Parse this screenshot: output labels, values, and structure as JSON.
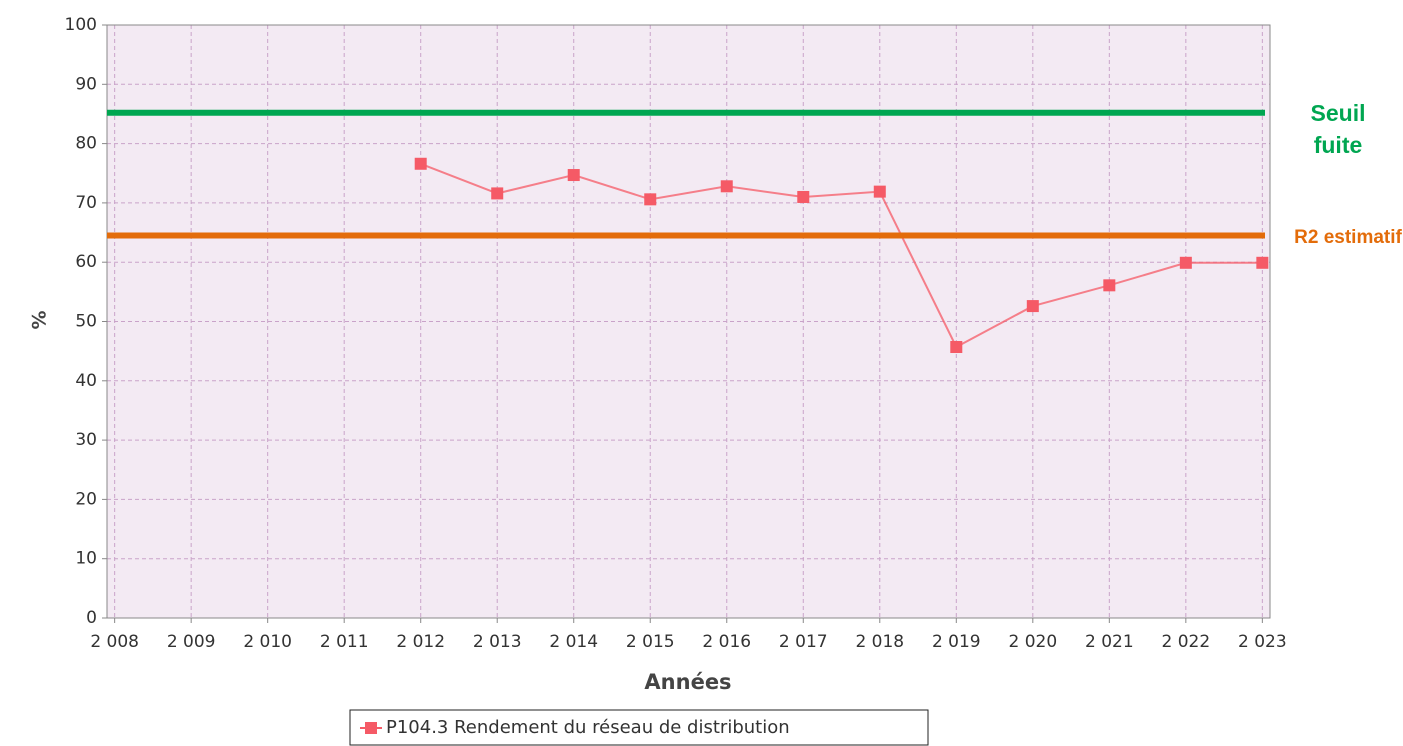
{
  "chart_data": {
    "type": "line",
    "xlabel": "Années",
    "ylabel": "%",
    "xlim": [
      2007.9,
      2023.1
    ],
    "ylim": [
      0,
      100
    ],
    "xticks": [
      {
        "value": 2008,
        "label": "2 008"
      },
      {
        "value": 2009,
        "label": "2 009"
      },
      {
        "value": 2010,
        "label": "2 010"
      },
      {
        "value": 2011,
        "label": "2 011"
      },
      {
        "value": 2012,
        "label": "2 012"
      },
      {
        "value": 2013,
        "label": "2 013"
      },
      {
        "value": 2014,
        "label": "2 014"
      },
      {
        "value": 2015,
        "label": "2 015"
      },
      {
        "value": 2016,
        "label": "2 016"
      },
      {
        "value": 2017,
        "label": "2 017"
      },
      {
        "value": 2018,
        "label": "2 018"
      },
      {
        "value": 2019,
        "label": "2 019"
      },
      {
        "value": 2020,
        "label": "2 020"
      },
      {
        "value": 2021,
        "label": "2 021"
      },
      {
        "value": 2022,
        "label": "2 022"
      },
      {
        "value": 2023,
        "label": "2 023"
      }
    ],
    "yticks": [
      0,
      10,
      20,
      30,
      40,
      50,
      60,
      70,
      80,
      90,
      100
    ],
    "grid": true,
    "x": [
      2012,
      2013,
      2014,
      2015,
      2016,
      2017,
      2018,
      2019,
      2020,
      2021,
      2022,
      2023
    ],
    "series": [
      {
        "name": "P104.3 Rendement du réseau de distribution",
        "color": "#f55a66",
        "values": [
          76.6,
          71.6,
          74.7,
          70.6,
          72.8,
          71.0,
          71.9,
          45.7,
          52.6,
          56.1,
          59.9,
          59.9
        ]
      }
    ],
    "reference_lines": [
      {
        "label": "Seuil fuite",
        "value": 85.2,
        "color": "#00a651"
      },
      {
        "label": "R2 estimatif",
        "value": 64.5,
        "color": "#e36c0a"
      }
    ],
    "legend": "bottom"
  }
}
